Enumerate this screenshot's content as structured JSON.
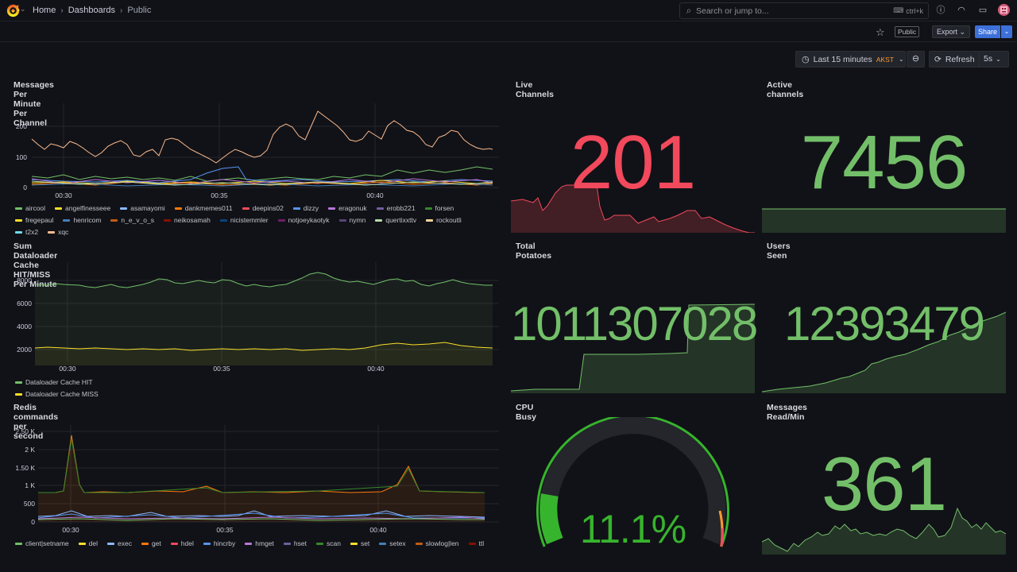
{
  "topbar": {
    "breadcrumb": [
      "Home",
      "Dashboards",
      "Public"
    ],
    "search_placeholder": "Search or jump to...",
    "search_shortcut": "ctrl+k"
  },
  "toolbar": {
    "public_tag": "Public",
    "export_label": "Export",
    "share_label": "Share",
    "time_range": "Last 15 minutes",
    "timezone": "AKST",
    "refresh_label": "Refresh",
    "refresh_interval": "5s"
  },
  "panels": {
    "messages": {
      "title": "Messages Per Minute Per Channel",
      "y_ticks": [
        "200",
        "100",
        "0"
      ],
      "x_ticks": [
        "00:30",
        "00:35",
        "00:40"
      ]
    },
    "live_channels": {
      "title": "Live Channels",
      "value": "201",
      "color": "#f2495c"
    },
    "active_channels": {
      "title": "Active channels",
      "value": "7456",
      "color": "#73bf69"
    },
    "dataloader": {
      "title": "Sum Dataloader Cache HIT/MISS Per Minute",
      "y_ticks": [
        "8000",
        "6000",
        "4000",
        "2000"
      ],
      "x_ticks": [
        "00:30",
        "00:35",
        "00:40"
      ],
      "legend": [
        {
          "name": "Dataloader Cache HIT",
          "color": "#73bf69"
        },
        {
          "name": "Dataloader Cache MISS",
          "color": "#fade2a"
        }
      ]
    },
    "total_potatoes": {
      "title": "Total Potatoes",
      "value": "1011307028",
      "color": "#73bf69"
    },
    "users_seen": {
      "title": "Users Seen",
      "value": "12393479",
      "color": "#73bf69"
    },
    "redis": {
      "title": "Redis commands per second",
      "y_ticks": [
        "2.50 K",
        "2 K",
        "1.50 K",
        "1 K",
        "500",
        "0"
      ],
      "x_ticks": [
        "00:30",
        "00:35",
        "00:40"
      ],
      "legend": [
        {
          "name": "client|setname",
          "color": "#73bf69"
        },
        {
          "name": "del",
          "color": "#fade2a"
        },
        {
          "name": "exec",
          "color": "#8ab8ff"
        },
        {
          "name": "get",
          "color": "#ff780a"
        },
        {
          "name": "hdel",
          "color": "#f2495c"
        },
        {
          "name": "hincrby",
          "color": "#5794f2"
        },
        {
          "name": "hmget",
          "color": "#b877d9"
        },
        {
          "name": "hset",
          "color": "#705da0"
        },
        {
          "name": "scan",
          "color": "#37872d"
        },
        {
          "name": "set",
          "color": "#fade2a"
        },
        {
          "name": "setex",
          "color": "#447ebc"
        },
        {
          "name": "slowlog|len",
          "color": "#c15c17"
        },
        {
          "name": "ttl",
          "color": "#890f02"
        }
      ]
    },
    "cpu": {
      "title": "CPU Busy",
      "value": "11.1%",
      "percent": 11.1,
      "color": "#37b42d"
    },
    "messages_read": {
      "title": "Messages Read/Min",
      "value": "361",
      "color": "#73bf69"
    }
  },
  "legend_channels": [
    {
      "name": "aircool",
      "color": "#73bf69"
    },
    {
      "name": "angelfinesseee",
      "color": "#fade2a"
    },
    {
      "name": "asamayomi",
      "color": "#8ab8ff"
    },
    {
      "name": "dankmemes011",
      "color": "#ff780a"
    },
    {
      "name": "deepins02",
      "color": "#f2495c"
    },
    {
      "name": "dizzy",
      "color": "#5794f2"
    },
    {
      "name": "eragonuk",
      "color": "#b877d9"
    },
    {
      "name": "erobb221",
      "color": "#705da0"
    },
    {
      "name": "forsen",
      "color": "#37872d"
    },
    {
      "name": "fregepaul",
      "color": "#fade2a"
    },
    {
      "name": "henricom",
      "color": "#447ebc"
    },
    {
      "name": "n_e_v_o_s",
      "color": "#c15c17"
    },
    {
      "name": "neikosamah",
      "color": "#890f02"
    },
    {
      "name": "nicistemmler",
      "color": "#0a437c"
    },
    {
      "name": "notjoeykaotyk",
      "color": "#6d1f62"
    },
    {
      "name": "nymn",
      "color": "#584477"
    },
    {
      "name": "quertixxttv",
      "color": "#b7dbab"
    },
    {
      "name": "rockoutli",
      "color": "#f4d598"
    },
    {
      "name": "t2x2",
      "color": "#70dbed"
    },
    {
      "name": "xqc",
      "color": "#f9ba8f"
    }
  ]
}
